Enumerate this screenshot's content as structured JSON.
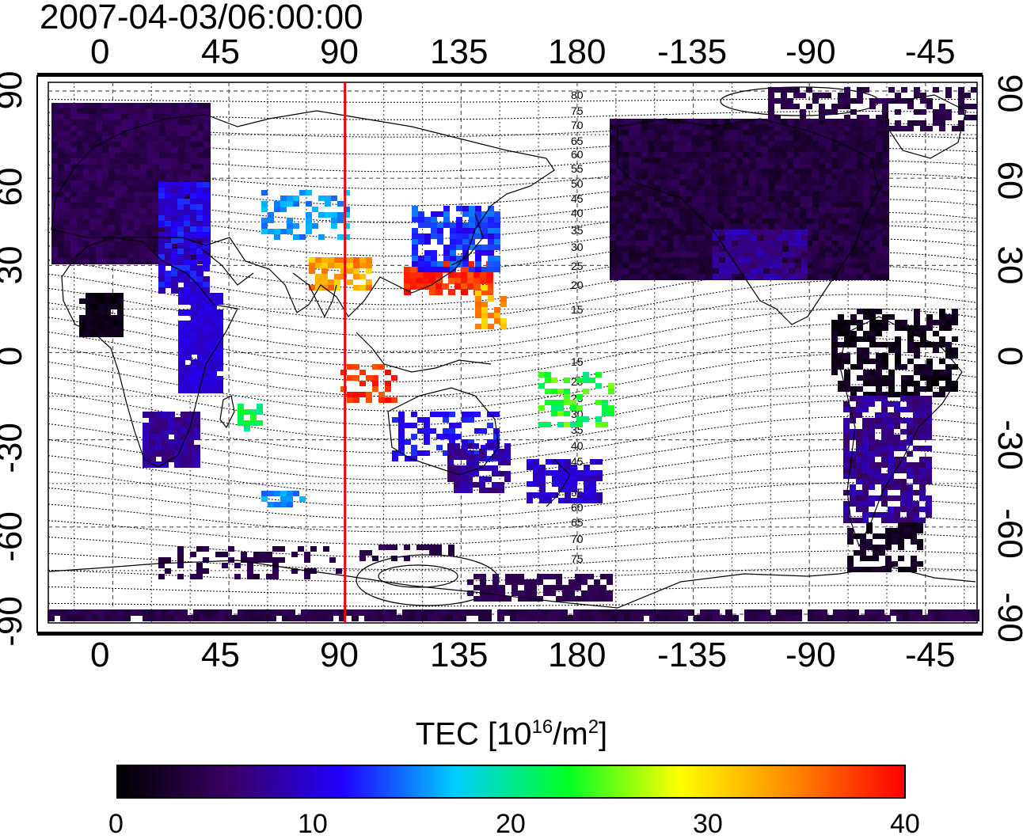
{
  "title": "2007-04-03/06:00:00",
  "map": {
    "top_ticks": [
      "0",
      "45",
      "90",
      "135",
      "180",
      "-135",
      "-90",
      "-45"
    ],
    "bottom_ticks": [
      "0",
      "45",
      "90",
      "135",
      "180",
      "-135",
      "-90",
      "-45"
    ],
    "left_ticks": [
      "90",
      "60",
      "30",
      "0",
      "-30",
      "-60",
      "-90"
    ],
    "right_ticks": [
      "90",
      "60",
      "30",
      "0",
      "-30",
      "-60",
      "-90"
    ],
    "lon_range": [
      -25,
      335
    ],
    "lat_range": [
      -93,
      93
    ],
    "marker_line_lon": 90,
    "marker_color": "#e8000b",
    "dip_labels": [
      "80",
      "75",
      "70",
      "65",
      "60",
      "55",
      "50",
      "45",
      "40",
      "35",
      "30",
      "25",
      "20",
      "15",
      "15",
      "20",
      "25",
      "30",
      "35",
      "40",
      "45",
      "50",
      "55",
      "60",
      "65",
      "70",
      "75"
    ]
  },
  "colorbar": {
    "title": "TEC  [10",
    "sup1": "16",
    "mid": "/m",
    "sup2": "2",
    "end": "]",
    "ticks": [
      "0",
      "10",
      "20",
      "30",
      "40"
    ],
    "range": [
      0,
      40
    ],
    "colors": [
      "#000000",
      "#3a0066",
      "#2200ff",
      "#00ccff",
      "#00ff22",
      "#ffff00",
      "#ff8800",
      "#ff0000"
    ]
  }
}
